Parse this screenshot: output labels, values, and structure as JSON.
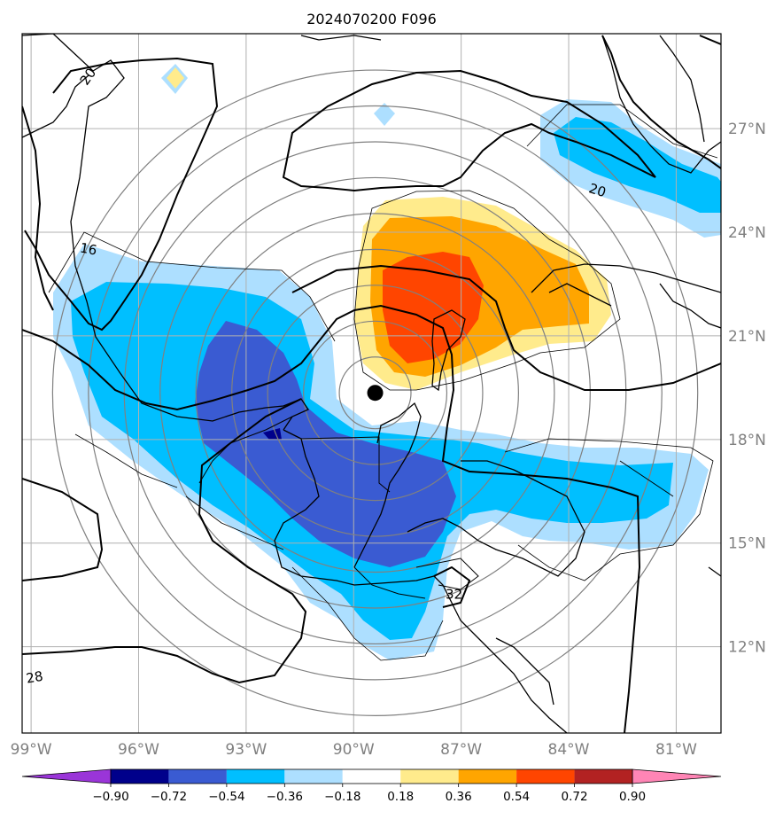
{
  "title": "2024070200 F096",
  "map": {
    "lon_range": [
      -99.25,
      -79.75
    ],
    "lat_range": [
      9.5,
      29.75
    ],
    "lon_ticks": [
      {
        "value": -99,
        "label": "99°W"
      },
      {
        "value": -96,
        "label": "96°W"
      },
      {
        "value": -93,
        "label": "93°W"
      },
      {
        "value": -90,
        "label": "90°W"
      },
      {
        "value": -87,
        "label": "87°W"
      },
      {
        "value": -84,
        "label": "84°W"
      },
      {
        "value": -81,
        "label": "81°W"
      }
    ],
    "lat_ticks": [
      {
        "value": 12,
        "label": "12°N"
      },
      {
        "value": 15,
        "label": "15°N"
      },
      {
        "value": 18,
        "label": "18°N"
      },
      {
        "value": 21,
        "label": "21°N"
      },
      {
        "value": 24,
        "label": "24°N"
      },
      {
        "value": 27,
        "label": "27°N"
      }
    ],
    "center_marker": {
      "lon": -89.4,
      "lat": 19.35
    },
    "range_rings_deg": [
      1,
      2,
      3,
      4,
      5,
      6,
      7,
      8,
      9
    ],
    "colors": {
      "grid": "#b0b0b0",
      "ring": "#808080",
      "coast": "#000000"
    },
    "contour_labels": [
      {
        "text": "20",
        "lon": -97.4,
        "lat": 28.5,
        "rot": -55
      },
      {
        "text": "16",
        "lon": -97.4,
        "lat": 23.5,
        "rot": 10
      },
      {
        "text": "20",
        "lon": -83.2,
        "lat": 25.2,
        "rot": 18
      },
      {
        "text": "32",
        "lon": -87.2,
        "lat": 13.5,
        "rot": 0
      },
      {
        "text": "28",
        "lon": -98.9,
        "lat": 11.1,
        "rot": -10
      }
    ]
  },
  "colorbar": {
    "colors": [
      "#9a35d8",
      "#00008b",
      "#3a5bd2",
      "#00bfff",
      "#addfff",
      "#ffffff",
      "#ffeb8c",
      "#ffa500",
      "#ff4500",
      "#b22222",
      "#ff85b5"
    ],
    "labels": [
      "−0.90",
      "−0.72",
      "−0.54",
      "−0.36",
      "−0.18",
      "0.18",
      "0.36",
      "0.54",
      "0.72",
      "0.90"
    ]
  }
}
